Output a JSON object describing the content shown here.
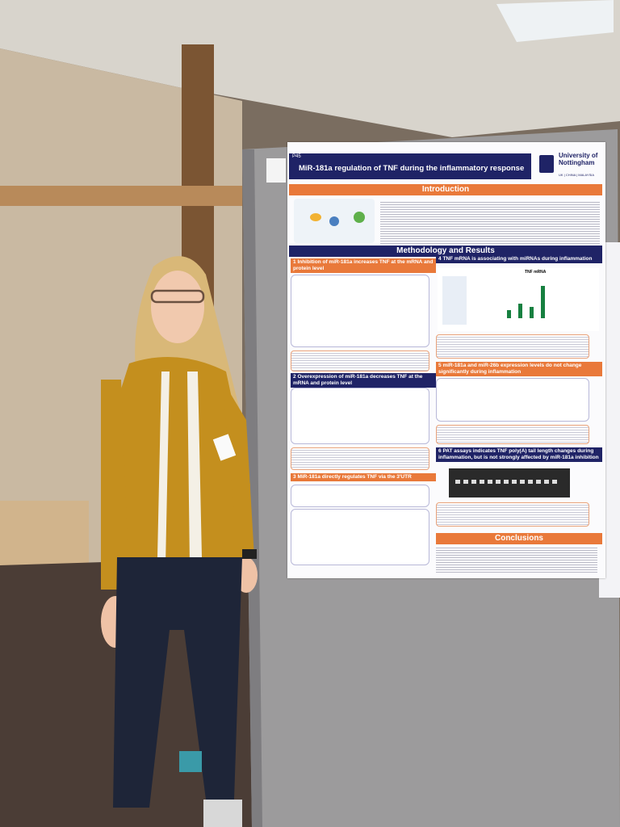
{
  "poster": {
    "number": "P45",
    "title": "MiR-181a regulation of TNF during the inflammatory response",
    "institution": "University of Nottingham",
    "campuses": "UK | CHINA | MALAYSIA",
    "sections": [
      "Introduction",
      "Methodology and Results",
      "Conclusions"
    ],
    "panels": [
      {
        "number": "1",
        "heading": "Inhibition of miR-181a increases TNF at the mRNA and protein level"
      },
      {
        "number": "2",
        "heading": "Overexpression of miR-181a decreases TNF at the mRNA and protein level"
      },
      {
        "number": "3",
        "heading": "MiR-181a directly regulates TNF via the 3'UTR"
      },
      {
        "number": "4",
        "heading": "TNF mRNA is associating with miRNAs during inflammation"
      },
      {
        "number": "5",
        "heading": "miR-181a and miR-26b expression levels do not change significantly during inflammation"
      },
      {
        "number": "6",
        "heading": "PAT assays indicates TNF poly(A) tail length changes during inflammation, but is not strongly affected by miR-181a inhibition"
      }
    ],
    "chart_label": "TNF mRNA"
  }
}
